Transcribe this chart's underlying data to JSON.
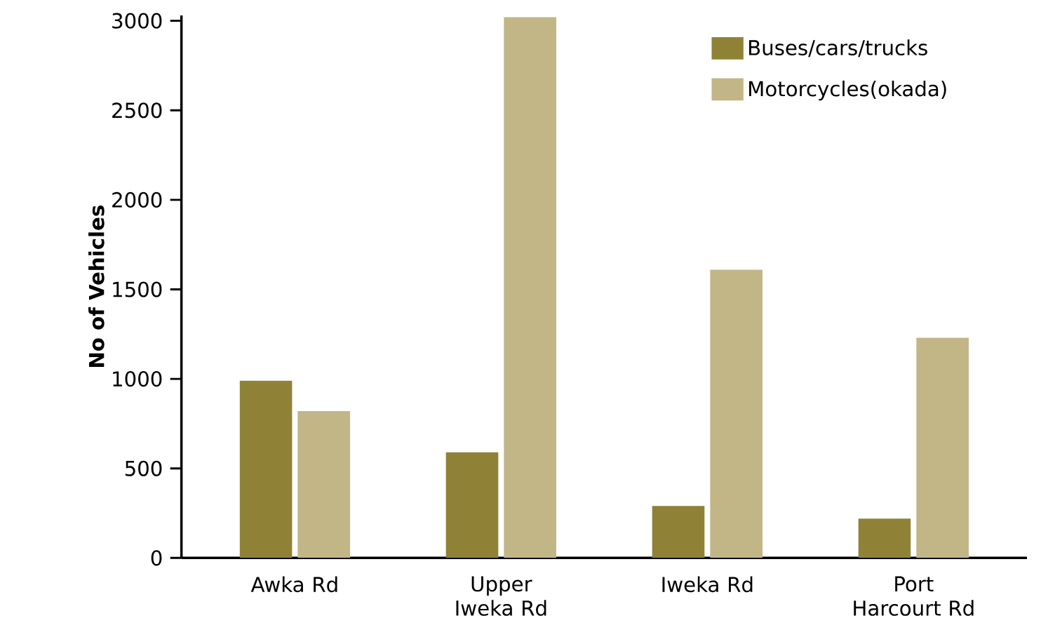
{
  "chart_data": {
    "type": "bar",
    "ylabel": "No of Vehicles",
    "categories": [
      "Awka Rd",
      "Upper Iweka Rd",
      "Iweka Rd",
      "Port Harcourt Rd"
    ],
    "series": [
      {
        "name": "Buses/cars/trucks",
        "color": "#8f8236",
        "values": [
          990,
          590,
          290,
          220
        ]
      },
      {
        "name": "Motorcycles(okada)",
        "color": "#c2b687",
        "values": [
          820,
          3020,
          1610,
          1230
        ]
      }
    ],
    "ylim": [
      0,
      3030
    ],
    "yticks": [
      0,
      500,
      1000,
      1500,
      2000,
      2500,
      3000
    ],
    "grid": false,
    "legend": "top right"
  }
}
